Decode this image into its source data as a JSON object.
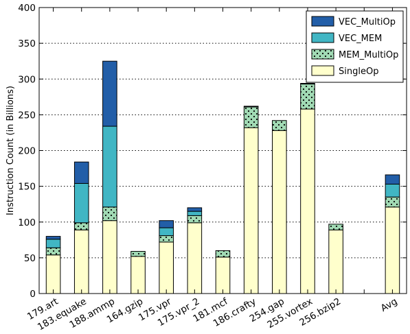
{
  "chart_data": {
    "type": "bar",
    "stacked": true,
    "title": "",
    "xlabel": "",
    "ylabel": "Instruction Count (in Billions)",
    "ylim": [
      0,
      400
    ],
    "yticks": [
      0,
      50,
      100,
      150,
      200,
      250,
      300,
      350,
      400
    ],
    "grid": "horizontal-dotted",
    "legend_position": "top-right",
    "categories": [
      "179.art",
      "183.equake",
      "188.ammp",
      "164.gzip",
      "175.vpr",
      "175.vpr_2",
      "181.mcf",
      "186.crafty",
      "254.gap",
      "255.vortex",
      "256.bzip2",
      "",
      "Avg"
    ],
    "series": [
      {
        "name": "SingleOp",
        "color": "#ffffcc",
        "pattern": "none",
        "values": [
          54,
          89,
          102,
          52,
          72,
          99,
          51,
          232,
          228,
          258,
          89,
          0,
          121
        ]
      },
      {
        "name": "MEM_MultiOp",
        "color": "#a1dab4",
        "pattern": "dots",
        "values": [
          10,
          10,
          19,
          7,
          9,
          10,
          9,
          29,
          14,
          35,
          8,
          0,
          14
        ]
      },
      {
        "name": "VEC_MEM",
        "color": "#41b6c4",
        "pattern": "none",
        "values": [
          12,
          55,
          113,
          0,
          11,
          6,
          0,
          0,
          0,
          0,
          0,
          0,
          18
        ]
      },
      {
        "name": "VEC_MultiOp",
        "color": "#225ea8",
        "pattern": "none",
        "values": [
          4,
          30,
          91,
          0,
          10,
          5,
          0,
          1,
          0,
          1,
          0,
          0,
          13
        ]
      }
    ],
    "legend_order": [
      "VEC_MultiOp",
      "VEC_MEM",
      "MEM_MultiOp",
      "SingleOp"
    ]
  }
}
